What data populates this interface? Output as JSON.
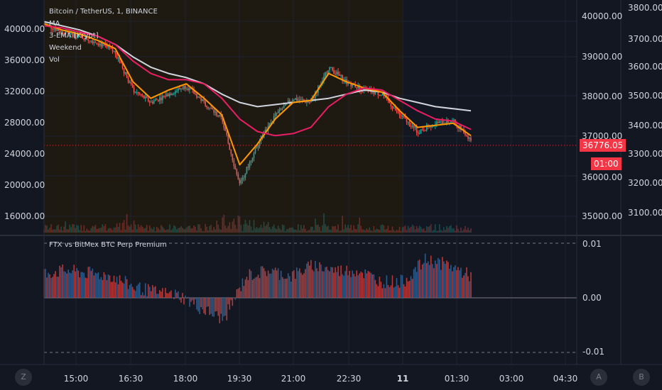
{
  "legend": {
    "symbol": "Bitcoin / TetherUS, 1, BINANCE",
    "indicators": [
      "MA",
      "3-EMA [Krypt]",
      "Weekend",
      "Vol"
    ]
  },
  "sub_legend": "FTX vs BitMex BTC Perp Premium",
  "left_axis_labels": [
    "40000.00",
    "36000.00",
    "32000.00",
    "28000.00",
    "24000.00",
    "20000.00",
    "16000.00"
  ],
  "mid_axis_labels": [
    "40000.00",
    "39000.00",
    "38000.00",
    "37000.00",
    "36000.00",
    "35000.00"
  ],
  "right_axis_labels": [
    "3800.00",
    "3700.00",
    "3600.00",
    "3500.00",
    "3400.00",
    "3300.00",
    "3200.00",
    "3100.00"
  ],
  "sub_axis_labels": [
    "0.01",
    "0.00",
    "-0.01"
  ],
  "time_labels": [
    "15:00",
    "16:30",
    "18:00",
    "19:30",
    "21:00",
    "22:30",
    "11",
    "01:30",
    "03:00",
    "04:30"
  ],
  "price_badge": "36776.05",
  "time_badge": "01:00",
  "buttons": {
    "zoom": "Z",
    "auto": "A",
    "log": "B"
  },
  "colors": {
    "background": "#131722",
    "weekend_shade": "#1e1a12",
    "white_ma": "#d1d4dc",
    "orange_ema": "#ff9800",
    "red_ma": "#e91e63",
    "up_candle": "#26a69a",
    "down_candle": "#ef5350",
    "premium_positive": "#b23a3a",
    "premium_negative": "#2e5a8a",
    "badge": "#f23645"
  },
  "chart_data": {
    "type": "line",
    "title": "Bitcoin / TetherUS, 1, BINANCE",
    "x": [
      "14:00",
      "15:00",
      "16:00",
      "16:30",
      "17:00",
      "17:30",
      "18:00",
      "18:30",
      "19:00",
      "19:30",
      "20:00",
      "20:15",
      "20:30",
      "21:00",
      "21:30",
      "22:00",
      "22:30",
      "23:00",
      "23:30",
      "00:00",
      "00:30",
      "00:45",
      "01:00",
      "01:30",
      "01:45"
    ],
    "series": [
      {
        "name": "price",
        "values": [
          39900,
          39700,
          39600,
          39450,
          39200,
          38300,
          38000,
          38200,
          38400,
          38000,
          37600,
          36000,
          37000,
          37700,
          38100,
          38000,
          38850,
          38500,
          38300,
          38200,
          37700,
          37300,
          37500,
          37550,
          37100
        ]
      },
      {
        "name": "MA",
        "values": [
          39950,
          39850,
          39750,
          39600,
          39400,
          39100,
          38850,
          38700,
          38600,
          38450,
          38200,
          38000,
          37900,
          37950,
          38000,
          38050,
          38100,
          38200,
          38300,
          38250,
          38100,
          38000,
          37900,
          37850,
          37800
        ]
      },
      {
        "name": "3-EMA [Krypt]",
        "values": [
          39900,
          39750,
          39650,
          39500,
          39300,
          38500,
          38100,
          38300,
          38450,
          38100,
          37700,
          36500,
          37000,
          37600,
          38000,
          38050,
          38700,
          38500,
          38350,
          38250,
          37800,
          37400,
          37450,
          37500,
          37200
        ]
      },
      {
        "name": "MA",
        "values": [
          39850,
          39800,
          39700,
          39600,
          39400,
          39000,
          38700,
          38550,
          38550,
          38450,
          38100,
          37600,
          37300,
          37200,
          37250,
          37400,
          37900,
          38200,
          38350,
          38300,
          38050,
          37800,
          37600,
          37550,
          37350
        ]
      }
    ],
    "ylim": [
      35000,
      40300
    ],
    "premium": {
      "ylim": [
        -0.012,
        0.012
      ],
      "x": [
        "14:00",
        "15:00",
        "16:00",
        "17:00",
        "18:00",
        "19:00",
        "19:30",
        "20:00",
        "20:30",
        "21:00",
        "21:30",
        "22:00",
        "22:30",
        "23:00",
        "23:30",
        "00:00",
        "00:30",
        "01:00",
        "01:30",
        "01:45"
      ],
      "values": [
        0.0045,
        0.005,
        0.0045,
        0.004,
        0.002,
        0.001,
        0.0005,
        -0.002,
        -0.004,
        0.004,
        0.005,
        0.004,
        0.006,
        0.005,
        0.005,
        0.003,
        0.003,
        0.007,
        0.006,
        0.004
      ]
    }
  }
}
